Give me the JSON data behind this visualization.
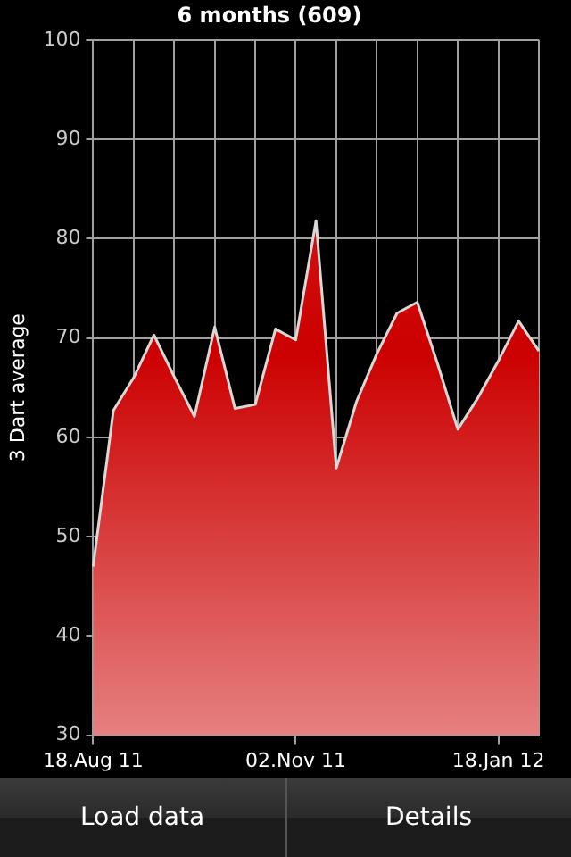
{
  "chart_data": {
    "type": "area",
    "title": "6 months (609)",
    "ylabel": "3 Dart average",
    "categories": [
      "18.Aug 11",
      null,
      null,
      null,
      null,
      null,
      null,
      null,
      null,
      null,
      "02.Nov 11",
      null,
      null,
      null,
      null,
      null,
      null,
      null,
      null,
      null,
      "18.Jan 12",
      null,
      null
    ],
    "series": [
      {
        "color": "#cc0000",
        "values": [
          47,
          62.7,
          66,
          70.3,
          66.1,
          62.1,
          71.1,
          62.9,
          63.3,
          70.9,
          69.8,
          81.8,
          56.9,
          63.6,
          68.4,
          72.5,
          73.6,
          67.4,
          60.8,
          64,
          67.7,
          71.7,
          68.7
        ]
      }
    ],
    "ylim": [
      30,
      100
    ],
    "yticks": [
      30,
      40,
      50,
      60,
      70,
      80,
      90,
      100
    ],
    "grid": true,
    "legend": false,
    "marker": "none",
    "annotations": [
      "Load data",
      "Details"
    ]
  }
}
